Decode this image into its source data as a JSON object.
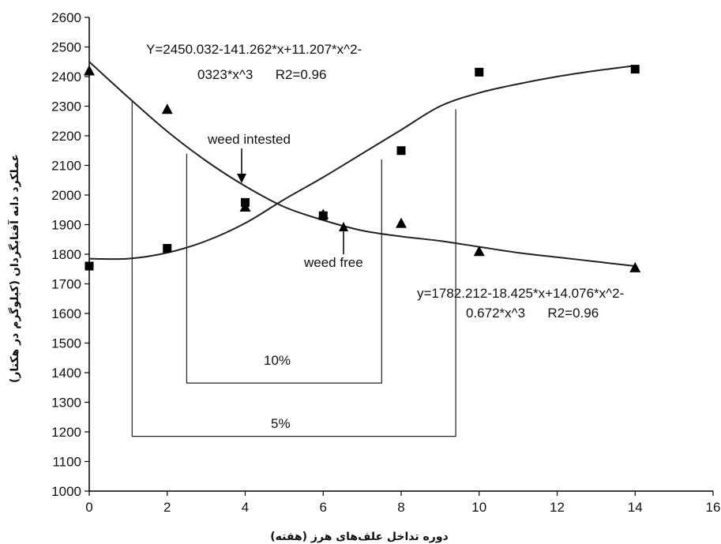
{
  "chart_data": {
    "type": "scatter",
    "xlabel": "دوره تداخل علف‌های هرز (هفته)",
    "ylabel": "عملکرد دانه آفتابگردان (کیلوگرم در هکتار)",
    "xlim": [
      0,
      16
    ],
    "ylim": [
      1000,
      2600
    ],
    "x_ticks": [
      0,
      2,
      4,
      6,
      8,
      10,
      12,
      14,
      16
    ],
    "y_ticks": [
      1000,
      1100,
      1200,
      1300,
      1400,
      1500,
      1600,
      1700,
      1800,
      1900,
      2000,
      2100,
      2200,
      2300,
      2400,
      2500,
      2600
    ],
    "grid": false,
    "series": [
      {
        "name": "weed intested",
        "marker": "triangle",
        "points": [
          {
            "x": 0,
            "y": 2420
          },
          {
            "x": 2,
            "y": 2290
          },
          {
            "x": 4,
            "y": 1960
          },
          {
            "x": 6,
            "y": 1935
          },
          {
            "x": 8,
            "y": 1905
          },
          {
            "x": 10,
            "y": 1810
          },
          {
            "x": 14,
            "y": 1755
          }
        ],
        "equation": [
          "Y=2450.032-141.262*x+11.207*x^2-",
          "0323*x^3      R2=0.96"
        ],
        "curve": [
          [
            0,
            2450
          ],
          [
            1,
            2330
          ],
          [
            2,
            2215
          ],
          [
            3,
            2115
          ],
          [
            4,
            2030
          ],
          [
            5,
            1960
          ],
          [
            6,
            1915
          ],
          [
            7,
            1880
          ],
          [
            8,
            1860
          ],
          [
            9,
            1845
          ],
          [
            10,
            1825
          ],
          [
            11,
            1805
          ],
          [
            12,
            1790
          ],
          [
            13,
            1775
          ],
          [
            14,
            1760
          ]
        ]
      },
      {
        "name": "weed free",
        "marker": "square",
        "points": [
          {
            "x": 0,
            "y": 1760
          },
          {
            "x": 2,
            "y": 1820
          },
          {
            "x": 4,
            "y": 1975
          },
          {
            "x": 6,
            "y": 1930
          },
          {
            "x": 8,
            "y": 2150
          },
          {
            "x": 10,
            "y": 2415
          },
          {
            "x": 14,
            "y": 2425
          }
        ],
        "equation": [
          "y=1782.212-18.425*x+14.076*x^2-",
          "0.672*x^3      R2=0.96"
        ],
        "curve": [
          [
            0,
            1785
          ],
          [
            1,
            1785
          ],
          [
            2,
            1805
          ],
          [
            3,
            1845
          ],
          [
            4,
            1905
          ],
          [
            5,
            1985
          ],
          [
            6,
            2060
          ],
          [
            7,
            2140
          ],
          [
            8,
            2220
          ],
          [
            9,
            2300
          ],
          [
            10,
            2345
          ],
          [
            11,
            2375
          ],
          [
            12,
            2400
          ],
          [
            13,
            2420
          ],
          [
            14,
            2437
          ]
        ]
      }
    ],
    "annotations": {
      "infested_label": "weed intested",
      "free_label": "weed free",
      "bracket_10": "10%",
      "bracket_5": "5%"
    },
    "brackets": [
      {
        "label_key": "bracket_10",
        "x_start": 2.5,
        "x_end": 7.5,
        "y_level": 1365,
        "y_top_start": 2140,
        "y_top_end": 2120
      },
      {
        "label_key": "bracket_5",
        "x_start": 1.1,
        "x_end": 9.4,
        "y_level": 1185,
        "y_top_start": 2320,
        "y_top_end": 2290
      }
    ],
    "colors": {
      "marker": "#000000",
      "curve": "#222222"
    }
  }
}
